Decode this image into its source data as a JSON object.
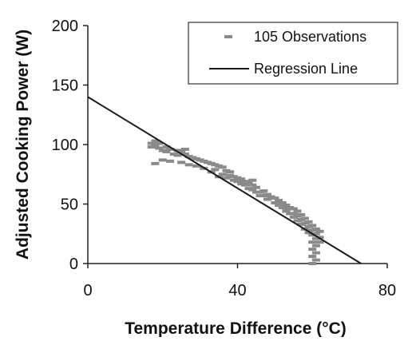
{
  "chart_data": {
    "type": "scatter",
    "xlabel": "Temperature Difference (°C)",
    "ylabel": "Adjusted Cooking Power (W)",
    "xlim": [
      0,
      80
    ],
    "ylim": [
      0,
      200
    ],
    "xticks": [
      0,
      40,
      80
    ],
    "yticks": [
      0,
      50,
      100,
      150,
      200
    ],
    "grid": false,
    "legend_position": "top-right",
    "colors": {
      "points": "#8a8a8a",
      "line": "#1a1a1a",
      "axes": "#222222"
    },
    "series": [
      {
        "name": "105 Observations",
        "kind": "scatter",
        "marker": "dash",
        "points": [
          [
            17,
            101
          ],
          [
            17,
            98
          ],
          [
            18,
            103
          ],
          [
            18,
            99
          ],
          [
            19,
            97
          ],
          [
            19,
            101
          ],
          [
            20,
            95
          ],
          [
            21,
            98
          ],
          [
            21,
            94
          ],
          [
            22,
            96
          ],
          [
            23,
            92
          ],
          [
            24,
            95
          ],
          [
            24,
            91
          ],
          [
            25,
            94
          ],
          [
            26,
            92
          ],
          [
            27,
            90
          ],
          [
            28,
            89
          ],
          [
            29,
            88
          ],
          [
            30,
            87
          ],
          [
            31,
            86
          ],
          [
            32,
            85
          ],
          [
            33,
            84
          ],
          [
            34,
            83
          ],
          [
            34,
            79
          ],
          [
            35,
            82
          ],
          [
            36,
            81
          ],
          [
            37,
            78
          ],
          [
            38,
            77
          ],
          [
            38,
            74
          ],
          [
            39,
            73
          ],
          [
            40,
            72
          ],
          [
            41,
            71
          ],
          [
            42,
            69
          ],
          [
            43,
            68
          ],
          [
            44,
            66
          ],
          [
            44,
            62
          ],
          [
            45,
            64
          ],
          [
            46,
            60
          ],
          [
            47,
            61
          ],
          [
            47,
            57
          ],
          [
            48,
            58
          ],
          [
            49,
            56
          ],
          [
            50,
            55
          ],
          [
            51,
            53
          ],
          [
            51,
            49
          ],
          [
            52,
            51
          ],
          [
            53,
            49
          ],
          [
            53,
            45
          ],
          [
            54,
            47
          ],
          [
            55,
            46
          ],
          [
            55,
            42
          ],
          [
            56,
            44
          ],
          [
            56,
            40
          ],
          [
            57,
            41
          ],
          [
            57,
            37
          ],
          [
            58,
            38
          ],
          [
            58,
            34
          ],
          [
            59,
            35
          ],
          [
            59,
            31
          ],
          [
            60,
            32
          ],
          [
            60,
            28
          ],
          [
            60,
            24
          ],
          [
            61,
            29
          ],
          [
            61,
            25
          ],
          [
            61,
            21
          ],
          [
            62,
            27
          ],
          [
            62,
            22
          ],
          [
            60,
            18
          ],
          [
            61,
            15
          ],
          [
            60,
            12
          ],
          [
            61,
            9
          ],
          [
            60,
            6
          ],
          [
            61,
            3
          ],
          [
            60,
            0
          ],
          [
            62,
            18
          ],
          [
            59,
            26
          ],
          [
            58,
            29
          ],
          [
            57,
            33
          ],
          [
            56,
            36
          ],
          [
            55,
            39
          ],
          [
            54,
            42
          ],
          [
            53,
            44
          ],
          [
            52,
            47
          ],
          [
            50,
            51
          ],
          [
            48,
            54
          ],
          [
            46,
            57
          ],
          [
            45,
            60
          ],
          [
            44,
            70
          ],
          [
            43,
            63
          ],
          [
            42,
            66
          ],
          [
            41,
            67
          ],
          [
            40,
            69
          ],
          [
            39,
            70
          ],
          [
            37,
            72
          ],
          [
            36,
            75
          ],
          [
            35,
            73
          ],
          [
            33,
            77
          ],
          [
            31,
            80
          ],
          [
            29,
            82
          ],
          [
            27,
            83
          ],
          [
            25,
            85
          ],
          [
            22,
            86
          ],
          [
            20,
            87
          ],
          [
            18,
            84
          ],
          [
            26,
            96
          ]
        ]
      },
      {
        "name": "Regression Line",
        "kind": "line",
        "points": [
          [
            0,
            140
          ],
          [
            73,
            0
          ]
        ]
      }
    ]
  }
}
